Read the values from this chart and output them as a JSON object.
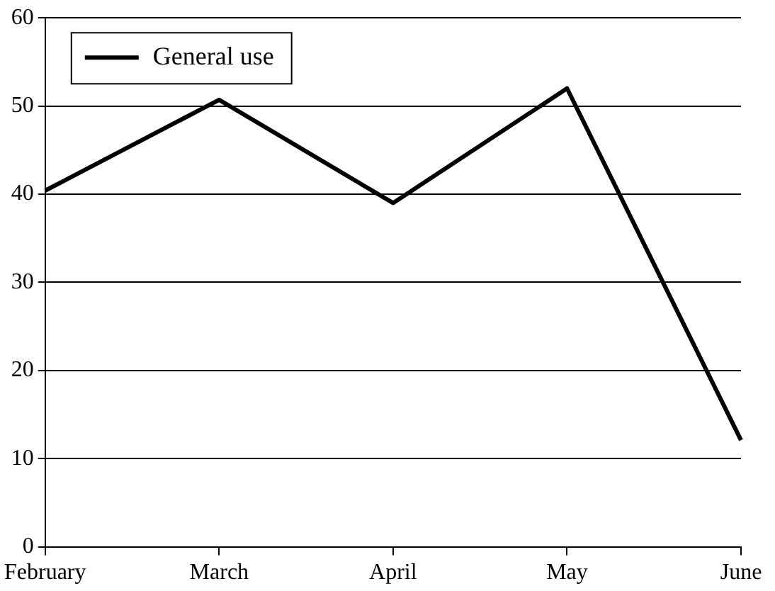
{
  "chart_data": {
    "type": "line",
    "categories": [
      "February",
      "March",
      "April",
      "May",
      "June"
    ],
    "series": [
      {
        "name": "General use",
        "color": "#000000",
        "values": [
          40.4,
          50.7,
          39.0,
          52.0,
          12.1
        ]
      }
    ],
    "ylim": [
      0,
      60
    ],
    "yticks": [
      0,
      10,
      20,
      30,
      40,
      50,
      60
    ],
    "grid": "y",
    "legend": "top left",
    "marker": "none",
    "line_style": "solid"
  }
}
